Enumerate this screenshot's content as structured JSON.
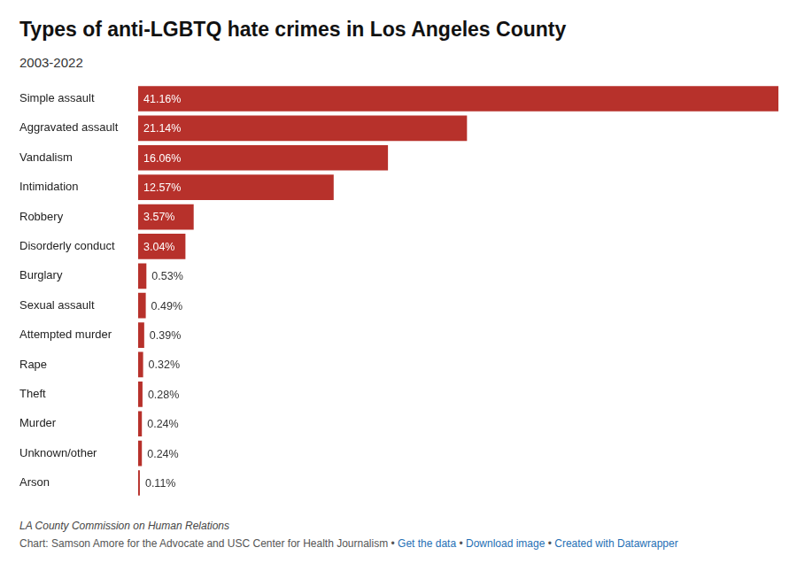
{
  "chart_data": {
    "type": "bar",
    "title": "Types of anti-LGBTQ hate crimes in Los Angeles County",
    "subtitle": "2003-2022",
    "source": "LA County Commission on Human Relations",
    "credit": [
      "Chart: Samson Amore for the Advocate and USC Center for Health Journalism",
      "Get the data",
      "Download image",
      "Created with Datawrapper"
    ],
    "separator": "•",
    "orientation": "horizontal",
    "categories": [
      "Simple assault",
      "Aggravated assault",
      "Vandalism",
      "Intimidation",
      "Robbery",
      "Disorderly conduct",
      "Burglary",
      "Sexual assault",
      "Attempted murder",
      "Rape",
      "Theft",
      "Murder",
      "Unknown/other",
      "Arson"
    ],
    "values": [
      41.16,
      21.14,
      16.06,
      12.57,
      3.57,
      3.04,
      0.53,
      0.49,
      0.39,
      0.32,
      0.28,
      0.24,
      0.24,
      0.11
    ],
    "value_labels": [
      "41.16%",
      "21.14%",
      "16.06%",
      "12.57%",
      "3.57%",
      "3.04%",
      "0.53%",
      "0.49%",
      "0.39%",
      "0.32%",
      "0.28%",
      "0.24%",
      "0.24%",
      "0.11%"
    ],
    "color": "#b7312b",
    "xlim": [
      0,
      41.16
    ],
    "grid": false,
    "data_labels": true,
    "tick_labels": "y"
  }
}
